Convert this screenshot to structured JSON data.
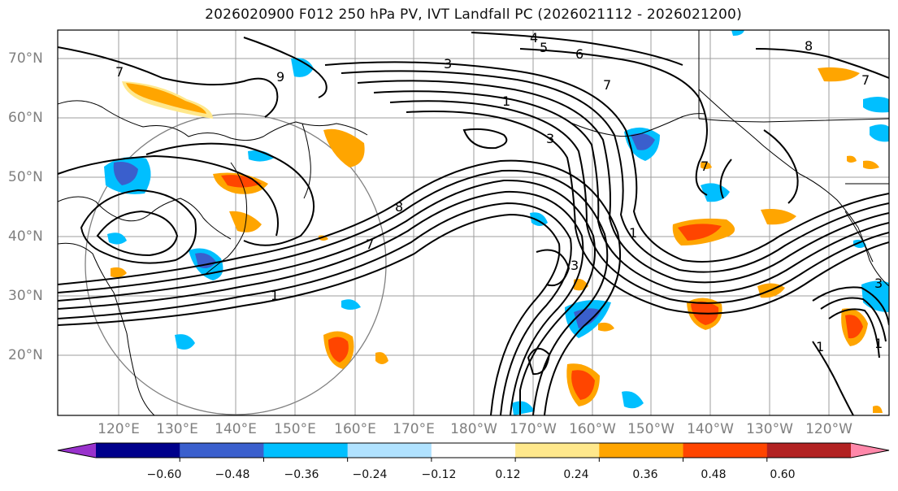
{
  "title": "2026020900 F012 250 hPa PV, IVT Landfall PC (2026021112 - 2026021200)",
  "latitude_labels": [
    "70°N",
    "60°N",
    "50°N",
    "40°N",
    "30°N",
    "20°N"
  ],
  "longitude_labels": [
    "120°E",
    "130°E",
    "140°E",
    "150°E",
    "160°E",
    "170°E",
    "180°W",
    "170°W",
    "160°W",
    "150°W",
    "140°W",
    "130°W",
    "120°W"
  ],
  "contour_labels": [
    "1",
    "3",
    "4",
    "5",
    "6",
    "7",
    "7",
    "7",
    "8",
    "9",
    "1",
    "3",
    "7",
    "8",
    "1",
    "7",
    "3",
    "3",
    "1",
    "1"
  ],
  "colorbar": {
    "ticks": [
      "−0.60",
      "−0.48",
      "−0.36",
      "−0.24",
      "−0.12",
      "0.12",
      "0.24",
      "0.36",
      "0.48",
      "0.60"
    ],
    "colors": [
      "#9932cc",
      "#00008b",
      "#3a5fcd",
      "#00bfff",
      "#b0e2ff",
      "#ffffff",
      "#ffe88c",
      "#ffa500",
      "#ff4500",
      "#b22222",
      "#ff88aa"
    ]
  }
}
